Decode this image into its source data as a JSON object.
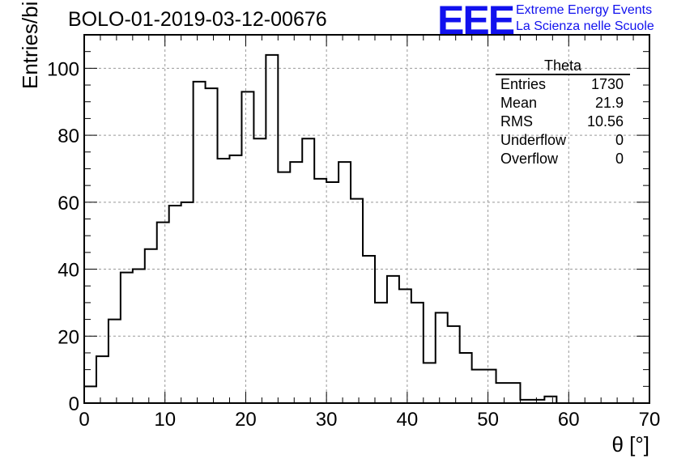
{
  "header": {
    "title": "BOLO-01-2019-03-12-00676",
    "logo": "EEE",
    "org_line1": "Extreme Energy Events",
    "org_line2": "La Scienza nelle Scuole"
  },
  "stats": {
    "name": "Theta",
    "rows": [
      {
        "label": "Entries",
        "value": "1730"
      },
      {
        "label": "Mean",
        "value": "21.9"
      },
      {
        "label": "RMS",
        "value": "10.56"
      },
      {
        "label": "Underflow",
        "value": "0"
      },
      {
        "label": "Overflow",
        "value": "0"
      }
    ]
  },
  "chart_data": {
    "type": "bar",
    "title": "BOLO-01-2019-03-12-00676",
    "xlabel": "θ [°]",
    "ylabel": "Entries/bin",
    "xlim": [
      0,
      70
    ],
    "ylim": [
      0,
      110
    ],
    "bin_width": 1.5,
    "x": [
      0,
      1.5,
      3,
      4.5,
      6,
      7.5,
      9,
      10.5,
      12,
      13.5,
      15,
      16.5,
      18,
      19.5,
      21,
      22.5,
      24,
      25.5,
      27,
      28.5,
      30,
      31.5,
      33,
      34.5,
      36,
      37.5,
      39,
      40.5,
      42,
      43.5,
      45,
      46.5,
      48,
      49.5,
      51,
      52.5,
      54,
      55.5,
      57,
      58.5,
      60,
      61.5,
      63,
      64.5,
      66,
      67.5
    ],
    "values": [
      5,
      14,
      25,
      39,
      40,
      46,
      54,
      59,
      60,
      96,
      94,
      73,
      74,
      93,
      79,
      104,
      69,
      72,
      79,
      67,
      66,
      72,
      61,
      44,
      30,
      38,
      34,
      30,
      12,
      27,
      23,
      15,
      10,
      10,
      6,
      6,
      1,
      1,
      2,
      0,
      0,
      0,
      0,
      0,
      0,
      0
    ],
    "x_ticks": [
      0,
      10,
      20,
      30,
      40,
      50,
      60,
      70
    ],
    "y_ticks": [
      0,
      20,
      40,
      60,
      80,
      100
    ],
    "grid": true,
    "line_color": "#000000"
  }
}
